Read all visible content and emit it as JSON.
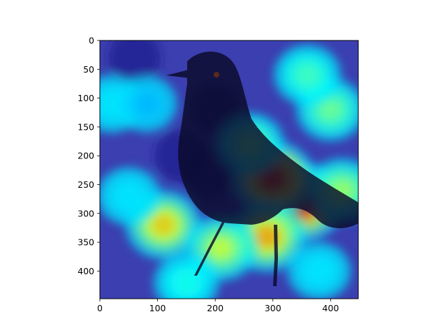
{
  "chart_data": {
    "type": "heatmap",
    "title": "",
    "xlabel": "",
    "ylabel": "",
    "image_shape": [
      448,
      448
    ],
    "xlim": [
      0,
      448
    ],
    "ylim": [
      448,
      0
    ],
    "x_ticks": [
      0,
      100,
      200,
      300,
      400
    ],
    "y_ticks": [
      0,
      50,
      100,
      150,
      200,
      250,
      300,
      350,
      400
    ],
    "x_tick_labels": [
      "0",
      "100",
      "200",
      "300",
      "400"
    ],
    "y_tick_labels": [
      "0",
      "50",
      "100",
      "150",
      "200",
      "250",
      "300",
      "350",
      "400"
    ],
    "colormap": "jet",
    "overlay_subject": "bird",
    "grid": false,
    "hot_regions": [
      {
        "x": 350,
        "y": 280,
        "intensity": 1.0
      },
      {
        "x": 300,
        "y": 240,
        "intensity": 0.9
      },
      {
        "x": 290,
        "y": 340,
        "intensity": 0.75
      },
      {
        "x": 110,
        "y": 320,
        "intensity": 0.7
      },
      {
        "x": 210,
        "y": 360,
        "intensity": 0.6
      },
      {
        "x": 420,
        "y": 260,
        "intensity": 0.55
      },
      {
        "x": 400,
        "y": 120,
        "intensity": 0.5
      },
      {
        "x": 360,
        "y": 60,
        "intensity": 0.45
      },
      {
        "x": 260,
        "y": 180,
        "intensity": 0.5
      },
      {
        "x": 20,
        "y": 110,
        "intensity": 0.35
      },
      {
        "x": 80,
        "y": 110,
        "intensity": 0.3
      },
      {
        "x": 50,
        "y": 270,
        "intensity": 0.35
      },
      {
        "x": 150,
        "y": 420,
        "intensity": 0.4
      },
      {
        "x": 380,
        "y": 400,
        "intensity": 0.35
      }
    ],
    "cold_regions": [
      {
        "x": 190,
        "y": 230
      },
      {
        "x": 200,
        "y": 120
      },
      {
        "x": 60,
        "y": 30
      },
      {
        "x": 140,
        "y": 200
      }
    ],
    "colors": {
      "background_base": "#3b3fb0",
      "bird": "#0a0a28",
      "frame": "#000000"
    }
  }
}
